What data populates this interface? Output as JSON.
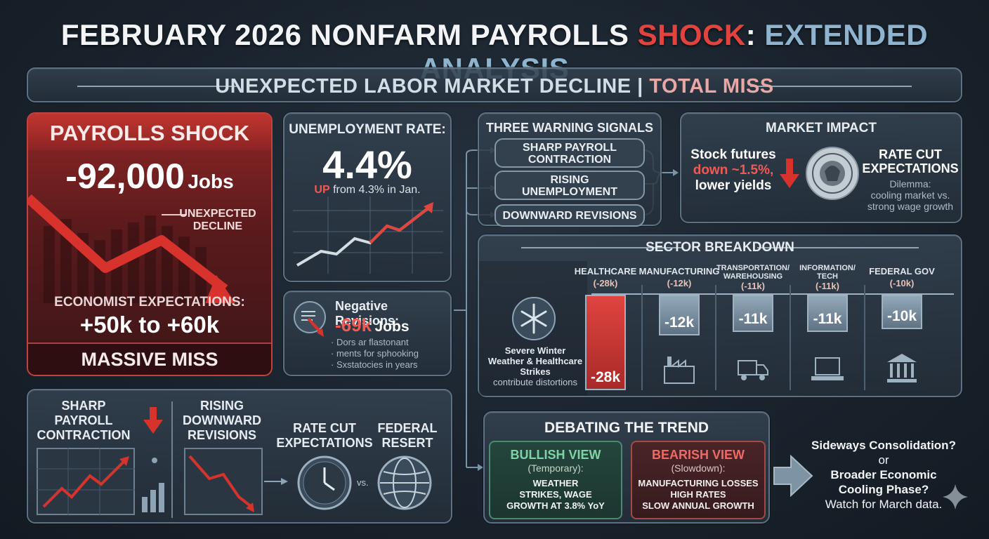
{
  "title": {
    "part1": "FEBRUARY 2026 NONFARM PAYROLLS ",
    "part2": "SHOCK",
    "part3": ": ",
    "part4": "EXTENDED ANALYSIS"
  },
  "subtitle": {
    "part1": "UNEXPECTED LABOR MARKET DECLINE | ",
    "part2": "TOTAL MISS"
  },
  "shock": {
    "heading": "PAYROLLS SHOCK",
    "value": "-92,000",
    "unit": "Jobs",
    "annotation_line1": "UNEXPECTED",
    "annotation_line2": "DECLINE",
    "expect_label": "ECONOMIST EXPECTATIONS:",
    "expect_value": "+50k to +60k",
    "footer": "MASSIVE MISS"
  },
  "unemployment": {
    "heading": "UNEMPLOYMENT RATE:",
    "value": "4.4%",
    "change_up": "UP",
    "change_rest": " from 4.3% in Jan."
  },
  "revisions": {
    "heading": "Negative Revisions:",
    "value": "-69k",
    "unit": "Jobs",
    "bullets": [
      "Dors ar flastonant",
      "ments for sphooking",
      "Sxstatocies in years"
    ]
  },
  "signals": {
    "heading": "THREE WARNING SIGNALS",
    "items": [
      {
        "line1": "SHARP PAYROLL",
        "line2": "CONTRACTION"
      },
      {
        "line1": "RISING",
        "line2": "UNEMPLOYMENT"
      },
      {
        "line1": "DOWNWARD REVISIONS",
        "line2": ""
      }
    ]
  },
  "market": {
    "heading": "MARKET IMPACT",
    "stock_line1": "Stock futures",
    "stock_line2": "down ~1.5%,",
    "stock_line3": "lower yields",
    "rate_line1": "RATE CUT",
    "rate_line2": "EXPECTATIONS",
    "dilemma_line1": "Dilemma:",
    "dilemma_line2": "cooling market vs.",
    "dilemma_line3": "strong wage growth",
    "seal_text": "FEDERAL RESERVE"
  },
  "sectors": {
    "heading": "SECTOR BREAKDOWN",
    "note_line1": "Severe Winter",
    "note_line2": "Weather & Healthcare",
    "note_line3": "Strikes",
    "note_line4": "contribute distortions",
    "items": [
      {
        "name1": "HEALTHCARE",
        "name2": "",
        "name3": "",
        "val": "(-28k)",
        "bar": "-28k",
        "value": -28,
        "color": "#d43a36"
      },
      {
        "name1": "MANUFACTURING",
        "name2": "",
        "name3": "",
        "val": "(-12k)",
        "bar": "-12k",
        "value": -12,
        "color": "#7e93a4"
      },
      {
        "name1": "TRANSPORTATION/",
        "name2": "WAREHOUSING",
        "name3": "",
        "val": "(-11k)",
        "bar": "-11k",
        "value": -11,
        "color": "#7e93a4"
      },
      {
        "name1": "INFORMATION/",
        "name2": "TECH",
        "name3": "",
        "val": "(-11k)",
        "bar": "-11k",
        "value": -11,
        "color": "#7e93a4"
      },
      {
        "name1": "FEDERAL GOV",
        "name2": "",
        "name3": "",
        "val": "(-10k)",
        "bar": "-10k",
        "value": -10,
        "color": "#7e93a4"
      }
    ]
  },
  "bottom": {
    "sharp_line1": "SHARP",
    "sharp_line2": "PAYROLL",
    "sharp_line3": "CONTRACTION",
    "rising_line1": "RISING",
    "rising_line2": "DOWNWARD",
    "rising_line3": "REVISIONS",
    "rate_line1": "RATE CUT",
    "rate_line2": "EXPECTATIONS",
    "fed_line1": "FEDERAL",
    "fed_line2": "RESERT",
    "vs": "vs."
  },
  "debate": {
    "heading": "DEBATING THE TREND",
    "bull_title": "BULLISH VIEW",
    "bull_sub": "(Temporary):",
    "bull_line1": "WEATHER",
    "bull_line2": "STRIKES, WAGE",
    "bull_line3": "GROWTH AT 3.8% YoY",
    "bear_title": "BEARISH VIEW",
    "bear_sub": "(Slowdown):",
    "bear_line1": "MANUFACTURING LOSSES",
    "bear_line2": "HIGH RATES",
    "bear_line3": "SLOW ANNUAL GROWTH"
  },
  "outlook": {
    "line1": "Sideways Consolidation?",
    "line2": "or",
    "line3": "Broader Economic",
    "line4": "Cooling Phase?",
    "line5": "Watch for March data."
  },
  "colors": {
    "accent_red": "#e2433e",
    "accent_blue": "#8fb4cf",
    "bull_green": "#7fd3a6",
    "bear_red": "#ef6a66"
  }
}
